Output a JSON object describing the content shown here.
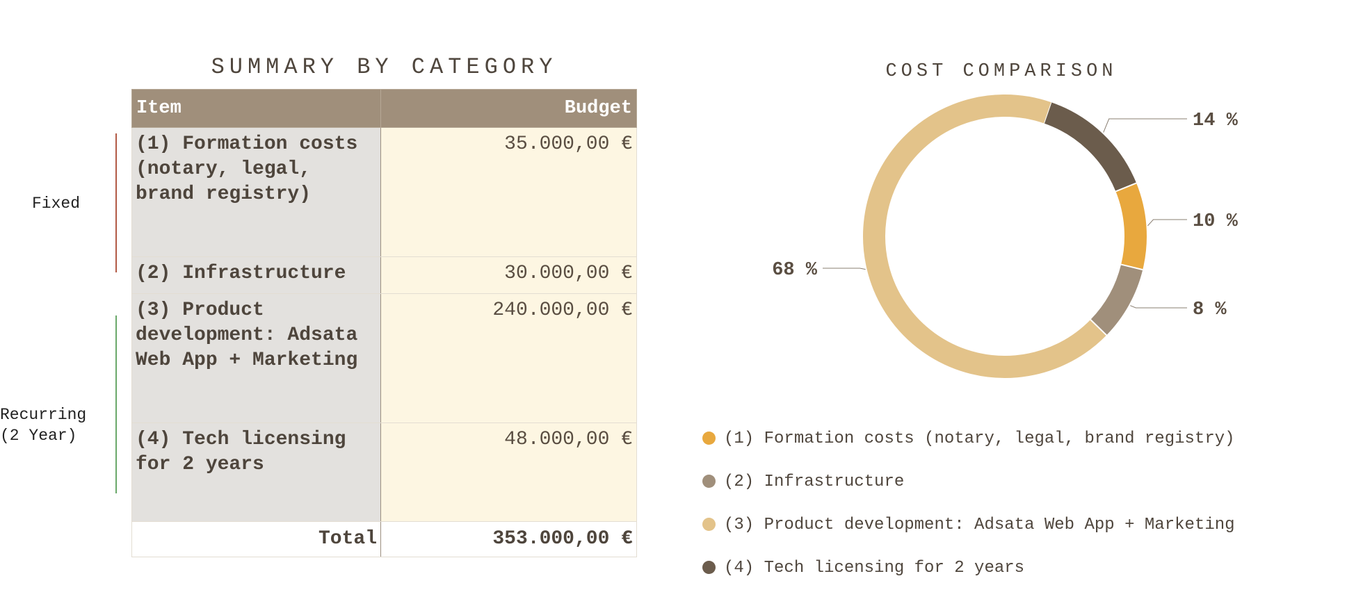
{
  "table": {
    "title": "SUMMARY BY CATEGORY",
    "headers": {
      "item": "Item",
      "budget": "Budget"
    },
    "rows": [
      {
        "item": "(1) Formation costs (notary, legal, brand registry)",
        "budget": "35.000,00 €"
      },
      {
        "item": "(2) Infrastructure",
        "budget": "30.000,00 €"
      },
      {
        "item": "(3) Product development: Adsata Web App + Marketing",
        "budget": "240.000,00 €"
      },
      {
        "item": "(4) Tech licensing for 2 years",
        "budget": "48.000,00 €"
      }
    ],
    "total": {
      "label": "Total",
      "value": "353.000,00 €"
    },
    "groups": {
      "fixed": "Fixed",
      "recurring": "Recurring (2 Year)"
    }
  },
  "chart_data": {
    "type": "pie",
    "title": "COST COMPARISON",
    "categories": [
      "(1) Formation costs (notary, legal, brand registry)",
      "(2) Infrastructure",
      "(3) Product development: Adsata Web App + Marketing",
      "(4) Tech licensing for 2 years"
    ],
    "values": [
      35000,
      30000,
      240000,
      48000
    ],
    "labels": [
      "10 %",
      "8 %",
      "68 %",
      "14 %"
    ],
    "colors": [
      "#e8a83e",
      "#a08f7b",
      "#e3c38a",
      "#6b5c4c"
    ],
    "legend_position": "bottom"
  }
}
